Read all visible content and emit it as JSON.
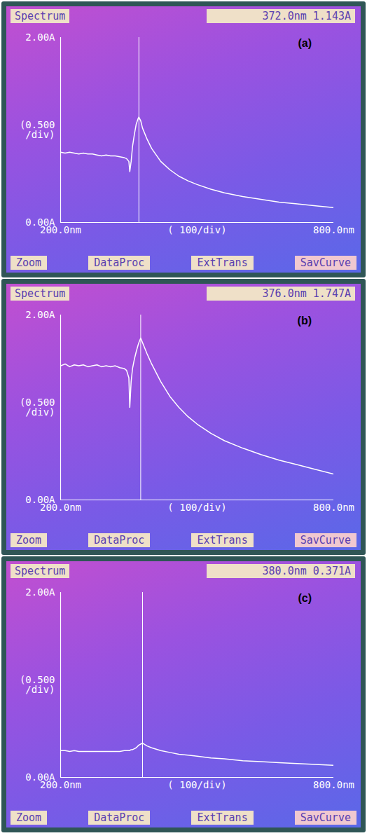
{
  "chart_data": [
    {
      "type": "line",
      "title": "Spectrum",
      "readout": "372.0nm 1.143A",
      "panel_label": "(a)",
      "y_note": "(0.500 /div)",
      "x_note": "( 100/div)",
      "buttons": [
        "Zoom",
        "DataProc",
        "ExtTrans",
        "SavCurve"
      ],
      "color": "#ffffff",
      "cursor_x": 372.0,
      "xlim": [
        200,
        800
      ],
      "ylim": [
        0,
        2
      ],
      "xticks": [
        {
          "value": 200,
          "label": "200.0nm"
        },
        {
          "value": 800,
          "label": "800.0nm"
        }
      ],
      "yticks": [
        {
          "value": 0,
          "label": "0.00A"
        },
        {
          "value": 2,
          "label": "2.00A"
        }
      ],
      "x": [
        200,
        210,
        220,
        230,
        240,
        250,
        260,
        270,
        280,
        290,
        300,
        310,
        320,
        330,
        340,
        345,
        350,
        352,
        355,
        358,
        362,
        366,
        370,
        372,
        376,
        380,
        390,
        400,
        420,
        440,
        460,
        480,
        500,
        530,
        560,
        600,
        640,
        680,
        720,
        760,
        800
      ],
      "values": [
        0.76,
        0.75,
        0.76,
        0.75,
        0.74,
        0.75,
        0.74,
        0.74,
        0.73,
        0.72,
        0.73,
        0.72,
        0.72,
        0.71,
        0.7,
        0.69,
        0.66,
        0.55,
        0.66,
        0.82,
        0.95,
        1.06,
        1.12,
        1.14,
        1.1,
        1.02,
        0.9,
        0.8,
        0.66,
        0.57,
        0.5,
        0.45,
        0.41,
        0.36,
        0.32,
        0.28,
        0.25,
        0.22,
        0.2,
        0.18,
        0.16
      ]
    },
    {
      "type": "line",
      "title": "Spectrum",
      "readout": "376.0nm 1.747A",
      "panel_label": "(b)",
      "y_note": "(0.500 /div)",
      "x_note": "( 100/div)",
      "buttons": [
        "Zoom",
        "DataProc",
        "ExtTrans",
        "SavCurve"
      ],
      "color": "#ffffff",
      "cursor_x": 376.0,
      "xlim": [
        200,
        800
      ],
      "ylim": [
        0,
        2
      ],
      "xticks": [
        {
          "value": 200,
          "label": "200.0nm"
        },
        {
          "value": 800,
          "label": "800.0nm"
        }
      ],
      "yticks": [
        {
          "value": 0,
          "label": "0.00A"
        },
        {
          "value": 2,
          "label": "2.00A"
        }
      ],
      "x": [
        200,
        210,
        220,
        230,
        240,
        250,
        260,
        270,
        280,
        290,
        300,
        310,
        320,
        330,
        340,
        345,
        350,
        352,
        355,
        358,
        362,
        366,
        370,
        372,
        376,
        380,
        390,
        400,
        420,
        440,
        460,
        480,
        500,
        530,
        560,
        600,
        640,
        680,
        720,
        760,
        800
      ],
      "values": [
        1.45,
        1.47,
        1.44,
        1.46,
        1.45,
        1.46,
        1.44,
        1.45,
        1.46,
        1.44,
        1.45,
        1.44,
        1.45,
        1.43,
        1.42,
        1.4,
        1.32,
        1.0,
        1.28,
        1.42,
        1.52,
        1.6,
        1.67,
        1.7,
        1.75,
        1.7,
        1.58,
        1.47,
        1.28,
        1.12,
        1.0,
        0.9,
        0.82,
        0.72,
        0.64,
        0.56,
        0.49,
        0.43,
        0.38,
        0.33,
        0.28
      ]
    },
    {
      "type": "line",
      "title": "Spectrum",
      "readout": "380.0nm 0.371A",
      "panel_label": "(c)",
      "y_note": "(0.500 /div)",
      "x_note": "( 100/div)",
      "buttons": [
        "Zoom",
        "DataProc",
        "ExtTrans",
        "SavCurve"
      ],
      "color": "#ffffff",
      "cursor_x": 380.0,
      "xlim": [
        200,
        800
      ],
      "ylim": [
        0,
        2
      ],
      "xticks": [
        {
          "value": 200,
          "label": "200.0nm"
        },
        {
          "value": 800,
          "label": "800.0nm"
        }
      ],
      "yticks": [
        {
          "value": 0,
          "label": "0.00A"
        },
        {
          "value": 2,
          "label": "2.00A"
        }
      ],
      "x": [
        200,
        210,
        220,
        230,
        240,
        250,
        260,
        270,
        280,
        290,
        300,
        310,
        320,
        330,
        340,
        345,
        350,
        352,
        355,
        358,
        362,
        366,
        370,
        372,
        376,
        380,
        390,
        400,
        420,
        440,
        460,
        480,
        500,
        530,
        560,
        600,
        640,
        680,
        720,
        760,
        800
      ],
      "values": [
        0.29,
        0.29,
        0.28,
        0.29,
        0.28,
        0.28,
        0.28,
        0.28,
        0.28,
        0.28,
        0.28,
        0.28,
        0.28,
        0.28,
        0.29,
        0.29,
        0.29,
        0.29,
        0.3,
        0.3,
        0.31,
        0.32,
        0.34,
        0.35,
        0.36,
        0.37,
        0.34,
        0.32,
        0.29,
        0.27,
        0.25,
        0.24,
        0.23,
        0.21,
        0.2,
        0.18,
        0.17,
        0.16,
        0.15,
        0.14,
        0.13
      ]
    }
  ]
}
